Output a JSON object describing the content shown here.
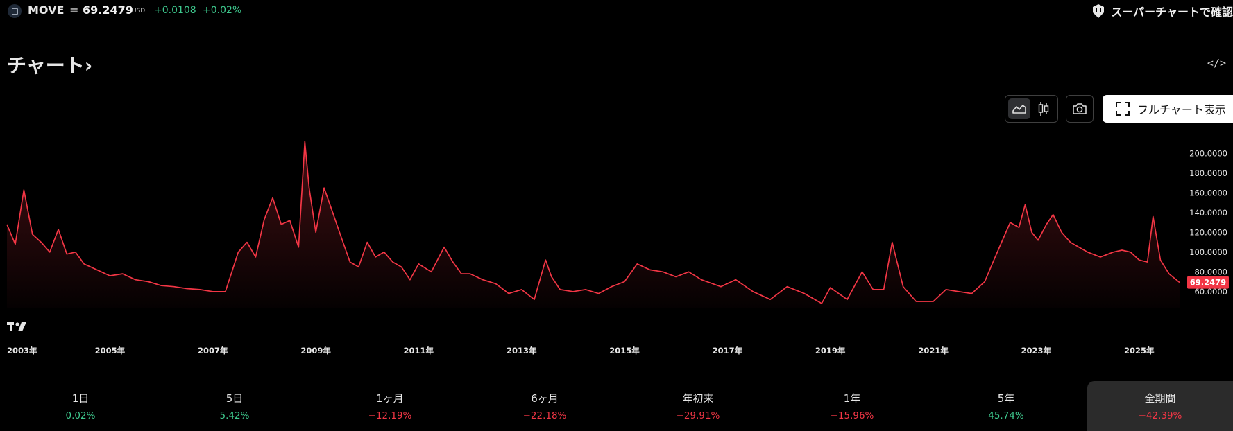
{
  "header": {
    "ticker": "MOVE",
    "separator": "=",
    "price": "69.2479",
    "currency": "USD",
    "change": "+0.0108",
    "change_pct": "+0.02%",
    "super_chart_label": "スーパーチャートで確認"
  },
  "section": {
    "title": "チャート",
    "title_chevron": "›",
    "embed_icon": "code-icon"
  },
  "toolbar": {
    "area_icon": "area-chart-icon",
    "candle_icon": "candlestick-icon",
    "snapshot_icon": "camera-icon",
    "fullchart_label": "フルチャート表示"
  },
  "chart_data": {
    "type": "area",
    "line_color": "#f23645",
    "current_value_label": "69.2479",
    "current_value": 69.2479,
    "ylim": [
      43,
      215
    ],
    "y_ticks": [
      "200.0000",
      "180.0000",
      "160.0000",
      "140.0000",
      "120.0000",
      "100.0000",
      "80.0000",
      "60.0000"
    ],
    "x_ticks": [
      "2003年",
      "2005年",
      "2007年",
      "2009年",
      "2011年",
      "2013年",
      "2015年",
      "2017年",
      "2019年",
      "2021年",
      "2023年",
      "2025年"
    ],
    "x_start": "2003-01-01",
    "x_end": "2025-10-15",
    "x": [
      "2003-01-01",
      "2003-03-01",
      "2003-05-01",
      "2003-07-01",
      "2003-09-01",
      "2003-11-01",
      "2004-01-01",
      "2004-03-01",
      "2004-05-01",
      "2004-07-01",
      "2004-09-01",
      "2004-11-01",
      "2005-01-01",
      "2005-04-01",
      "2005-07-01",
      "2005-10-01",
      "2006-01-01",
      "2006-04-01",
      "2006-07-01",
      "2006-10-01",
      "2007-01-01",
      "2007-04-01",
      "2007-07-01",
      "2007-09-01",
      "2007-11-01",
      "2008-01-01",
      "2008-03-01",
      "2008-05-01",
      "2008-07-01",
      "2008-09-01",
      "2008-10-15",
      "2008-11-15",
      "2009-01-01",
      "2009-03-01",
      "2009-05-01",
      "2009-07-01",
      "2009-09-01",
      "2009-11-01",
      "2010-01-01",
      "2010-03-01",
      "2010-05-01",
      "2010-07-01",
      "2010-09-01",
      "2010-11-01",
      "2011-01-01",
      "2011-04-01",
      "2011-07-01",
      "2011-09-01",
      "2011-11-01",
      "2012-01-01",
      "2012-04-01",
      "2012-07-01",
      "2012-10-01",
      "2013-01-01",
      "2013-04-01",
      "2013-06-20",
      "2013-08-01",
      "2013-10-01",
      "2014-01-01",
      "2014-04-01",
      "2014-07-01",
      "2014-10-01",
      "2015-01-01",
      "2015-04-01",
      "2015-07-01",
      "2015-10-01",
      "2016-01-01",
      "2016-04-01",
      "2016-07-01",
      "2016-11-15",
      "2017-03-01",
      "2017-07-01",
      "2017-11-01",
      "2018-03-01",
      "2018-07-01",
      "2018-11-01",
      "2019-01-01",
      "2019-05-01",
      "2019-08-15",
      "2019-11-01",
      "2020-01-15",
      "2020-03-15",
      "2020-06-01",
      "2020-09-01",
      "2021-01-01",
      "2021-04-01",
      "2021-07-01",
      "2021-10-01",
      "2022-01-01",
      "2022-03-01",
      "2022-05-01",
      "2022-07-01",
      "2022-09-01",
      "2022-10-15",
      "2022-12-01",
      "2023-01-15",
      "2023-03-15",
      "2023-05-01",
      "2023-07-01",
      "2023-09-01",
      "2023-11-01",
      "2024-01-01",
      "2024-04-01",
      "2024-07-01",
      "2024-09-01",
      "2024-11-01",
      "2025-01-01",
      "2025-03-01",
      "2025-04-10",
      "2025-06-01",
      "2025-08-01",
      "2025-10-15"
    ],
    "values": [
      128,
      108,
      163,
      118,
      110,
      100,
      123,
      98,
      100,
      88,
      84,
      80,
      76,
      78,
      72,
      70,
      66,
      65,
      63,
      62,
      60,
      60,
      100,
      110,
      95,
      133,
      155,
      128,
      132,
      105,
      212,
      165,
      120,
      165,
      140,
      115,
      90,
      85,
      110,
      95,
      100,
      90,
      85,
      72,
      88,
      80,
      105,
      90,
      78,
      78,
      72,
      68,
      58,
      62,
      52,
      92,
      75,
      62,
      60,
      62,
      58,
      65,
      70,
      88,
      82,
      80,
      75,
      80,
      72,
      65,
      72,
      60,
      52,
      65,
      58,
      48,
      64,
      52,
      80,
      62,
      62,
      110,
      65,
      50,
      50,
      62,
      60,
      58,
      70,
      90,
      110,
      130,
      125,
      148,
      120,
      112,
      128,
      138,
      120,
      110,
      105,
      100,
      95,
      100,
      102,
      100,
      92,
      90,
      136,
      92,
      78,
      69.2479
    ]
  },
  "periods": [
    {
      "label": "1日",
      "value": "0.02%",
      "color": "#3ec98e"
    },
    {
      "label": "5日",
      "value": "5.42%",
      "color": "#3ec98e"
    },
    {
      "label": "1ヶ月",
      "value": "−12.19%",
      "color": "#f23645"
    },
    {
      "label": "6ヶ月",
      "value": "−22.18%",
      "color": "#f23645"
    },
    {
      "label": "年初来",
      "value": "−29.91%",
      "color": "#f23645"
    },
    {
      "label": "1年",
      "value": "−15.96%",
      "color": "#f23645"
    },
    {
      "label": "5年",
      "value": "45.74%",
      "color": "#3ec98e"
    },
    {
      "label": "全期間",
      "value": "−42.39%",
      "color": "#f23645",
      "active": true
    }
  ]
}
